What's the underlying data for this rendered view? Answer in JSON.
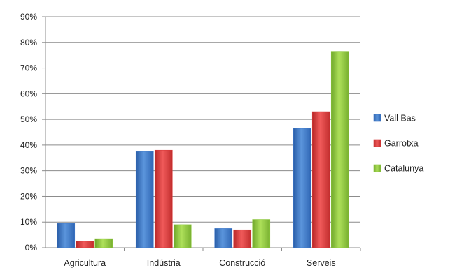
{
  "chart_data": {
    "type": "bar",
    "categories": [
      "Agricultura",
      "Indústria",
      "Construcció",
      "Serveis"
    ],
    "series": [
      {
        "name": "Vall Bas",
        "color": "#3f78c8",
        "values": [
          9.5,
          37.5,
          7.5,
          46.5
        ]
      },
      {
        "name": "Garrotxa",
        "color": "#d83a3a",
        "values": [
          2.5,
          38,
          7,
          53
        ]
      },
      {
        "name": "Catalunya",
        "color": "#8cc63e",
        "values": [
          3.5,
          9,
          11,
          76.5
        ]
      }
    ],
    "ylim": [
      0,
      90
    ],
    "yticks": [
      "0%",
      "10%",
      "20%",
      "30%",
      "40%",
      "50%",
      "60%",
      "70%",
      "80%",
      "90%"
    ],
    "grid": true,
    "legend_position": "right"
  }
}
